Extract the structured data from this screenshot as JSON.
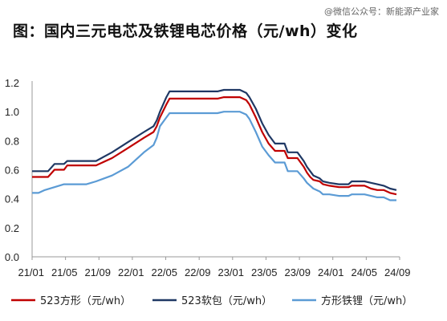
{
  "title": "图：国内三元电芯及铁锂电芯价格（元/wh）变化",
  "watermark": "@微信公众号：新能源产业家",
  "chart_data": {
    "type": "line",
    "x_ticks": [
      "21/01",
      "21/05",
      "21/09",
      "22/01",
      "22/05",
      "22/09",
      "23/01",
      "23/05",
      "23/09",
      "24/01",
      "24/05",
      "24/09"
    ],
    "ylim": [
      0,
      1.2
    ],
    "y_ticks": [
      "0.0",
      "0.2",
      "0.4",
      "0.6",
      "0.8",
      "1.0",
      "1.2"
    ],
    "grid": false,
    "legend_position": "bottom",
    "series": [
      {
        "name": "523方形（元/wh）",
        "color": "#c00000",
        "points": [
          [
            0.0,
            0.55
          ],
          [
            0.05,
            0.55
          ],
          [
            0.07,
            0.6
          ],
          [
            0.1,
            0.6
          ],
          [
            0.11,
            0.63
          ],
          [
            0.2,
            0.63
          ],
          [
            0.25,
            0.68
          ],
          [
            0.3,
            0.75
          ],
          [
            0.35,
            0.82
          ],
          [
            0.38,
            0.86
          ],
          [
            0.39,
            0.9
          ],
          [
            0.4,
            0.96
          ],
          [
            0.42,
            1.05
          ],
          [
            0.43,
            1.09
          ],
          [
            0.5,
            1.09
          ],
          [
            0.58,
            1.09
          ],
          [
            0.6,
            1.1
          ],
          [
            0.65,
            1.1
          ],
          [
            0.67,
            1.08
          ],
          [
            0.68,
            1.05
          ],
          [
            0.7,
            0.96
          ],
          [
            0.72,
            0.86
          ],
          [
            0.74,
            0.78
          ],
          [
            0.76,
            0.73
          ],
          [
            0.79,
            0.73
          ],
          [
            0.8,
            0.68
          ],
          [
            0.83,
            0.68
          ],
          [
            0.85,
            0.62
          ],
          [
            0.86,
            0.58
          ],
          [
            0.87,
            0.55
          ],
          [
            0.88,
            0.53
          ],
          [
            0.9,
            0.52
          ],
          [
            0.91,
            0.5
          ],
          [
            0.93,
            0.49
          ],
          [
            0.96,
            0.48
          ],
          [
            0.99,
            0.48
          ],
          [
            1.0,
            0.49
          ],
          [
            1.04,
            0.49
          ],
          [
            1.06,
            0.47
          ],
          [
            1.08,
            0.46
          ],
          [
            1.1,
            0.46
          ],
          [
            1.12,
            0.44
          ],
          [
            1.14,
            0.43
          ]
        ]
      },
      {
        "name": "523软包（元/wh）",
        "color": "#1f3864",
        "points": [
          [
            0.0,
            0.59
          ],
          [
            0.05,
            0.59
          ],
          [
            0.07,
            0.64
          ],
          [
            0.1,
            0.64
          ],
          [
            0.11,
            0.66
          ],
          [
            0.2,
            0.66
          ],
          [
            0.25,
            0.72
          ],
          [
            0.3,
            0.79
          ],
          [
            0.35,
            0.86
          ],
          [
            0.38,
            0.9
          ],
          [
            0.39,
            0.94
          ],
          [
            0.4,
            1.0
          ],
          [
            0.42,
            1.1
          ],
          [
            0.43,
            1.14
          ],
          [
            0.5,
            1.14
          ],
          [
            0.58,
            1.14
          ],
          [
            0.6,
            1.15
          ],
          [
            0.65,
            1.15
          ],
          [
            0.67,
            1.13
          ],
          [
            0.68,
            1.1
          ],
          [
            0.7,
            1.02
          ],
          [
            0.72,
            0.92
          ],
          [
            0.74,
            0.84
          ],
          [
            0.76,
            0.78
          ],
          [
            0.79,
            0.78
          ],
          [
            0.8,
            0.72
          ],
          [
            0.83,
            0.72
          ],
          [
            0.85,
            0.66
          ],
          [
            0.86,
            0.62
          ],
          [
            0.87,
            0.59
          ],
          [
            0.88,
            0.56
          ],
          [
            0.9,
            0.54
          ],
          [
            0.91,
            0.52
          ],
          [
            0.93,
            0.51
          ],
          [
            0.96,
            0.5
          ],
          [
            0.99,
            0.5
          ],
          [
            1.0,
            0.52
          ],
          [
            1.04,
            0.52
          ],
          [
            1.06,
            0.51
          ],
          [
            1.08,
            0.5
          ],
          [
            1.1,
            0.49
          ],
          [
            1.12,
            0.47
          ],
          [
            1.14,
            0.46
          ]
        ]
      },
      {
        "name": "方形铁锂（元/wh）",
        "color": "#5b9bd5",
        "points": [
          [
            0.0,
            0.44
          ],
          [
            0.02,
            0.44
          ],
          [
            0.04,
            0.46
          ],
          [
            0.07,
            0.48
          ],
          [
            0.1,
            0.5
          ],
          [
            0.17,
            0.5
          ],
          [
            0.2,
            0.52
          ],
          [
            0.25,
            0.56
          ],
          [
            0.3,
            0.62
          ],
          [
            0.35,
            0.72
          ],
          [
            0.38,
            0.77
          ],
          [
            0.39,
            0.82
          ],
          [
            0.4,
            0.9
          ],
          [
            0.42,
            0.96
          ],
          [
            0.43,
            0.99
          ],
          [
            0.5,
            0.99
          ],
          [
            0.58,
            0.99
          ],
          [
            0.6,
            1.0
          ],
          [
            0.65,
            1.0
          ],
          [
            0.67,
            0.98
          ],
          [
            0.68,
            0.95
          ],
          [
            0.7,
            0.86
          ],
          [
            0.72,
            0.76
          ],
          [
            0.74,
            0.7
          ],
          [
            0.76,
            0.65
          ],
          [
            0.79,
            0.65
          ],
          [
            0.8,
            0.59
          ],
          [
            0.83,
            0.59
          ],
          [
            0.85,
            0.54
          ],
          [
            0.86,
            0.51
          ],
          [
            0.87,
            0.49
          ],
          [
            0.88,
            0.47
          ],
          [
            0.9,
            0.45
          ],
          [
            0.91,
            0.43
          ],
          [
            0.93,
            0.43
          ],
          [
            0.96,
            0.42
          ],
          [
            0.99,
            0.42
          ],
          [
            1.0,
            0.43
          ],
          [
            1.04,
            0.43
          ],
          [
            1.06,
            0.42
          ],
          [
            1.08,
            0.41
          ],
          [
            1.1,
            0.41
          ],
          [
            1.12,
            0.39
          ],
          [
            1.14,
            0.39
          ]
        ]
      }
    ]
  }
}
